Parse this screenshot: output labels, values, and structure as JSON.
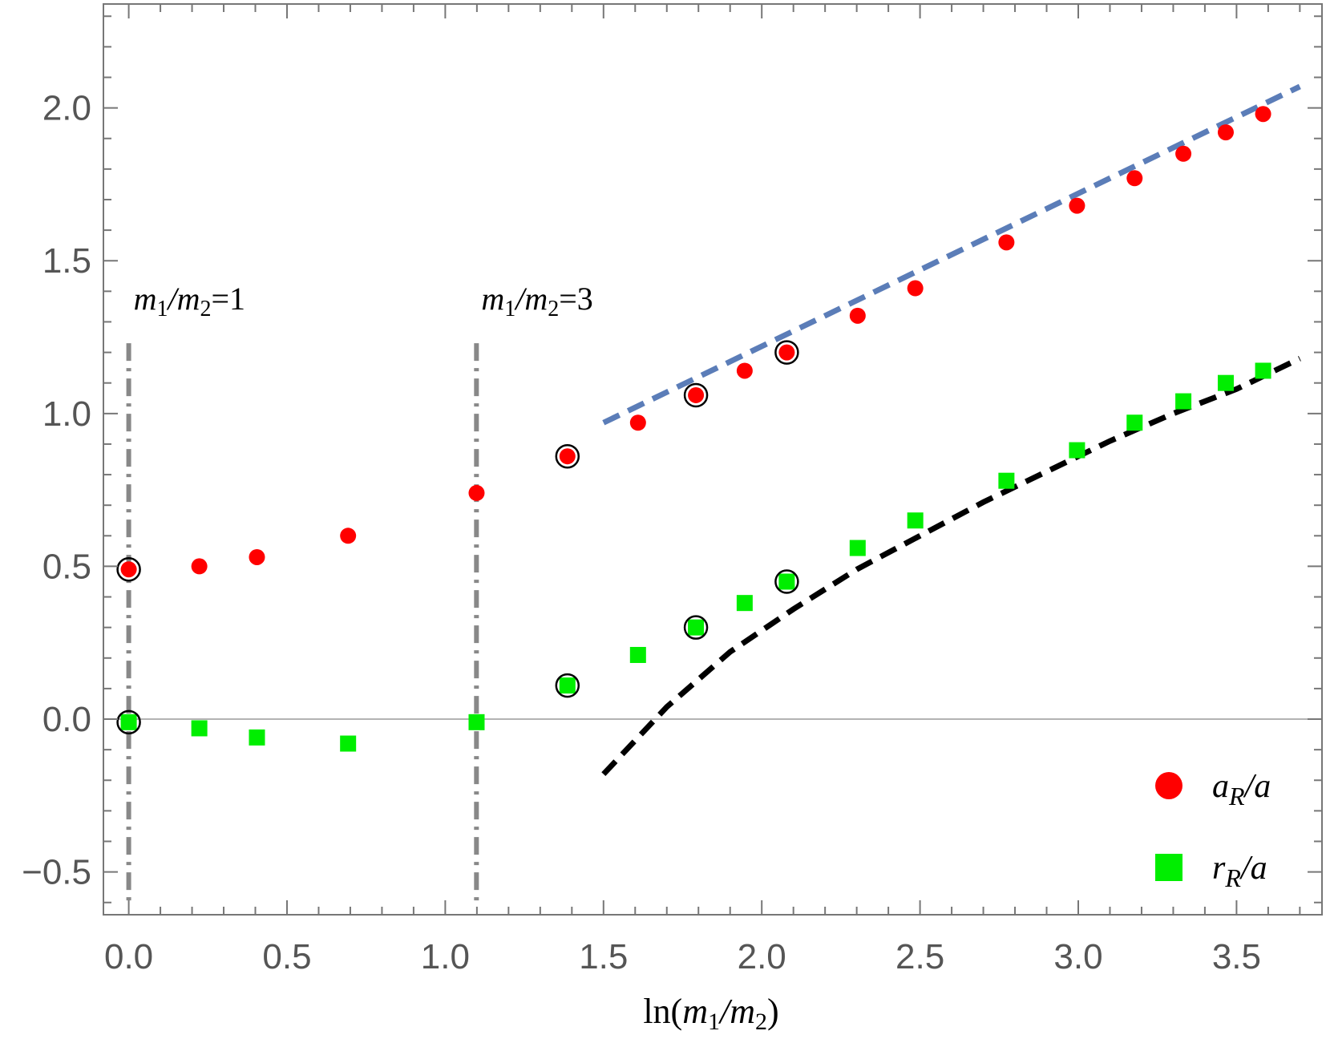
{
  "chart_data": {
    "type": "scatter",
    "title": "",
    "xlabel": "ln(m₁/m₂)",
    "ylabel": "",
    "xlim": [
      -0.08,
      3.77
    ],
    "ylim": [
      -0.64,
      2.34
    ],
    "grid": false,
    "legend_position": "bottom-right",
    "x_ticks": [
      0.0,
      0.5,
      1.0,
      1.5,
      2.0,
      2.5,
      3.0,
      3.5
    ],
    "x_tick_labels": [
      "0.0",
      "0.5",
      "1.0",
      "1.5",
      "2.0",
      "2.5",
      "3.0",
      "3.5"
    ],
    "y_ticks": [
      -0.5,
      0.0,
      0.5,
      1.0,
      1.5,
      2.0
    ],
    "y_tick_labels": [
      "−0.5",
      "0.0",
      "0.5",
      "1.0",
      "1.5",
      "2.0"
    ],
    "series": [
      {
        "name": "aR/a",
        "legend_main": "a",
        "legend_sub": "R",
        "legend_tail": "/a",
        "marker": "circle",
        "color": "#ff0000",
        "x": [
          0.0,
          0.223,
          0.405,
          0.693,
          1.099,
          1.386,
          1.609,
          1.792,
          1.946,
          2.079,
          2.303,
          2.485,
          2.773,
          2.996,
          3.178,
          3.332,
          3.466,
          3.584
        ],
        "y": [
          0.49,
          0.5,
          0.53,
          0.6,
          0.74,
          0.86,
          0.97,
          1.06,
          1.14,
          1.2,
          1.32,
          1.41,
          1.56,
          1.68,
          1.77,
          1.85,
          1.92,
          1.98
        ]
      },
      {
        "name": "rR/a",
        "legend_main": "r",
        "legend_sub": "R",
        "legend_tail": "/a",
        "marker": "square",
        "color": "#00ee00",
        "x": [
          0.0,
          0.223,
          0.405,
          0.693,
          1.099,
          1.386,
          1.609,
          1.792,
          1.946,
          2.079,
          2.303,
          2.485,
          2.773,
          2.996,
          3.178,
          3.332,
          3.466,
          3.584
        ],
        "y": [
          -0.01,
          -0.03,
          -0.06,
          -0.08,
          -0.01,
          0.11,
          0.21,
          0.3,
          0.38,
          0.45,
          0.56,
          0.65,
          0.78,
          0.88,
          0.97,
          1.04,
          1.1,
          1.14
        ]
      }
    ],
    "highlighted_x": [
      0.0,
      1.386,
      1.792,
      2.079
    ],
    "fit_lines": [
      {
        "name": "blue-dashed-fit",
        "color": "#5b7db8",
        "x": [
          1.5,
          3.7
        ],
        "y": [
          0.97,
          2.07
        ]
      },
      {
        "name": "black-dashed-fit",
        "color": "#000000",
        "x": [
          1.5,
          1.7,
          1.9,
          2.1,
          2.3,
          2.5,
          2.7,
          2.9,
          3.1,
          3.3,
          3.5,
          3.7
        ],
        "y": [
          -0.18,
          0.04,
          0.22,
          0.36,
          0.49,
          0.6,
          0.71,
          0.81,
          0.91,
          1.0,
          1.08,
          1.18
        ]
      }
    ],
    "vlines": [
      {
        "x": 0.0,
        "label_main": "m",
        "label_sub1": "1",
        "label_mid": "/m",
        "label_sub2": "2",
        "label_value": "=1"
      },
      {
        "x": 1.0986,
        "label_main": "m",
        "label_sub1": "1",
        "label_mid": "/m",
        "label_sub2": "2",
        "label_value": "=3"
      }
    ],
    "hline_y": 0.0
  }
}
